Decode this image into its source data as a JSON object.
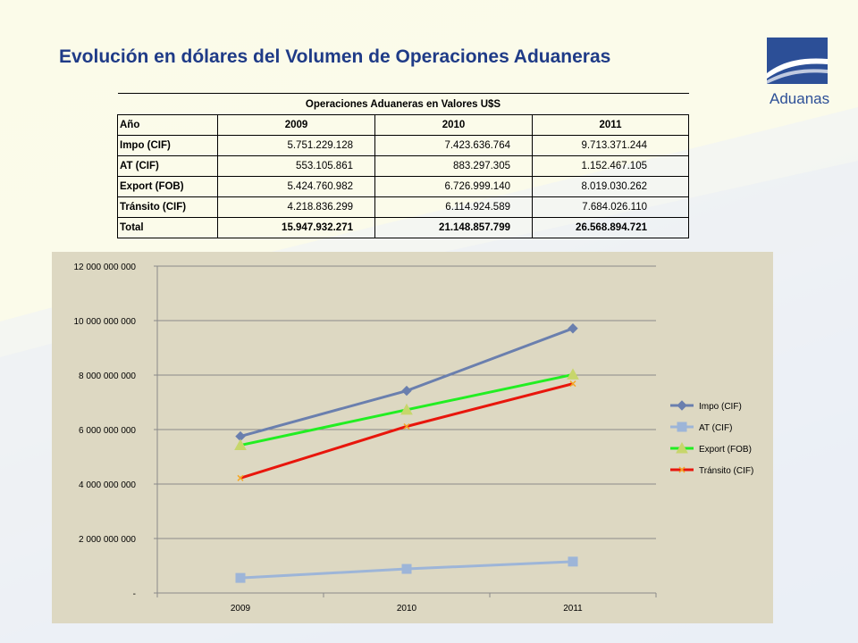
{
  "page": {
    "title": "Evolución en dólares del Volumen de Operaciones Aduaneras"
  },
  "logo": {
    "text": "Aduanas",
    "color": "#2c4f97"
  },
  "table": {
    "caption": "Operaciones Aduaneras en Valores U$S",
    "headers": [
      "Año",
      "2009",
      "2010",
      "2011"
    ],
    "rows": [
      {
        "label": "Impo (CIF)",
        "values": [
          "5.751.229.128",
          "7.423.636.764",
          "9.713.371.244"
        ]
      },
      {
        "label": "AT (CIF)",
        "values": [
          "553.105.861",
          "883.297.305",
          "1.152.467.105"
        ]
      },
      {
        "label": "Export (FOB)",
        "values": [
          "5.424.760.982",
          "6.726.999.140",
          "8.019.030.262"
        ]
      },
      {
        "label": "Tránsito (CIF)",
        "values": [
          "4.218.836.299",
          "6.114.924.589",
          "7.684.026.110"
        ]
      },
      {
        "label": "Total",
        "values": [
          "15.947.932.271",
          "21.148.857.799",
          "26.568.894.721"
        ]
      }
    ]
  },
  "chart_data": {
    "type": "line",
    "title": "",
    "xlabel": "",
    "ylabel": "",
    "categories": [
      "2009",
      "2010",
      "2011"
    ],
    "ylim": [
      0,
      12000000000
    ],
    "yticks": [
      0,
      2000000000,
      4000000000,
      6000000000,
      8000000000,
      10000000000,
      12000000000
    ],
    "ytick_labels": [
      "-",
      "2 000 000 000",
      "4 000 000 000",
      "6 000 000 000",
      "8 000 000 000",
      "10 000 000 000",
      "12 000 000 000"
    ],
    "grid": true,
    "legend_position": "right",
    "background": "#ddd8c2",
    "series": [
      {
        "name": "Impo (CIF)",
        "values": [
          5751229128,
          7423636764,
          9713371244
        ],
        "color": "#6a7fae",
        "marker": "diamond"
      },
      {
        "name": "AT (CIF)",
        "values": [
          553105861,
          883297305,
          1152467105
        ],
        "color": "#9db5d8",
        "marker": "square"
      },
      {
        "name": "Export (FOB)",
        "values": [
          5424760982,
          6726999140,
          8019030262
        ],
        "color": "#22ee22",
        "marker": "triangle"
      },
      {
        "name": "Tránsito (CIF)",
        "values": [
          4218836299,
          6114924589,
          7684026110
        ],
        "color": "#e8160c",
        "marker": "x"
      }
    ]
  }
}
